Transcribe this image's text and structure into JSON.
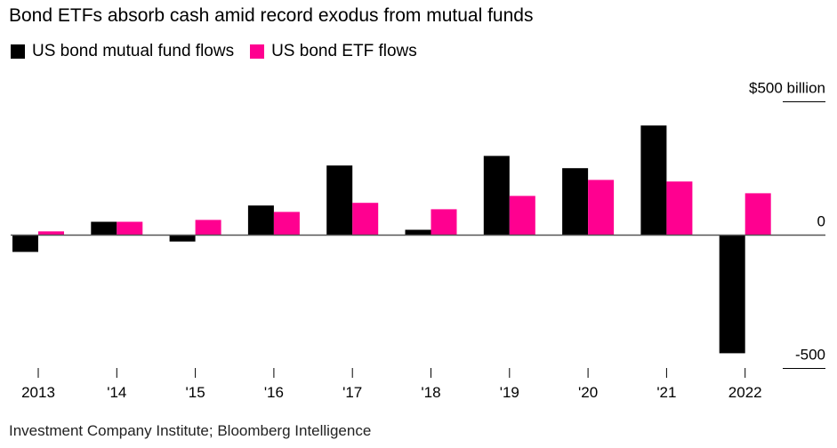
{
  "title": "Bond ETFs absorb cash amid record exodus from mutual funds",
  "source": "Investment Company Institute; Bloomberg Intelligence",
  "chart_data": {
    "type": "bar",
    "categories": [
      "2013",
      "'14",
      "'15",
      "'16",
      "'17",
      "'18",
      "'19",
      "'20",
      "'21",
      "2022"
    ],
    "series": [
      {
        "name": "US bond mutual fund flows",
        "color": "#000000",
        "values": [
          -63,
          50,
          -24,
          111,
          261,
          20,
          297,
          251,
          411,
          -443
        ]
      },
      {
        "name": "US bond ETF flows",
        "color": "#ff0090",
        "values": [
          14,
          50,
          57,
          87,
          121,
          97,
          147,
          207,
          201,
          157
        ]
      }
    ],
    "y_ticks": [
      {
        "value": 500,
        "label": "$500 billion"
      },
      {
        "value": 0,
        "label": "0"
      },
      {
        "value": -500,
        "label": "-500"
      }
    ],
    "ylim": [
      -500,
      500
    ],
    "axis_side": "right",
    "legend": "top-left",
    "grid": false
  }
}
